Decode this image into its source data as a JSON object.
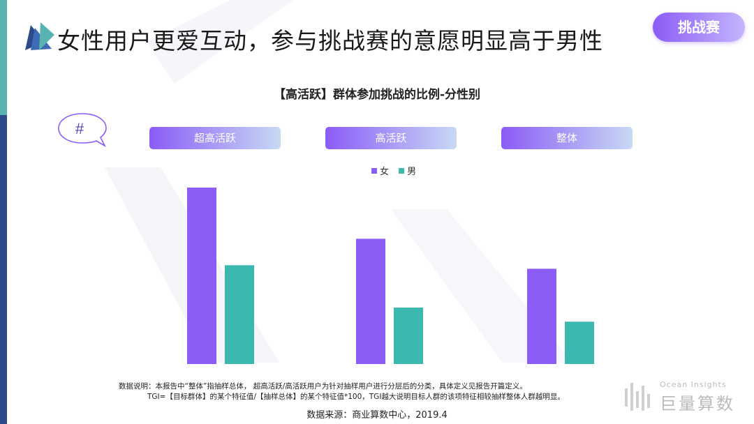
{
  "header": {
    "title": "女性用户更爱互动，参与挑战赛的意愿明显高于男性",
    "tag": "挑战赛"
  },
  "hash_symbol": "#",
  "colors": {
    "female": "#8b5cf6",
    "male": "#3db8b0",
    "accent": "#8b5cf6"
  },
  "chart_data": {
    "type": "bar",
    "title": "【高活跃】群体参加挑战的比例-分性别",
    "categories": [
      "超高活跃",
      "高活跃",
      "整体"
    ],
    "series": [
      {
        "name": "女",
        "values": [
          100,
          71,
          54
        ]
      },
      {
        "name": "男",
        "values": [
          56,
          32,
          24
        ]
      }
    ],
    "ylim": [
      0,
      100
    ],
    "grid": false,
    "y_axis_visible": false,
    "legend_position": "top-center"
  },
  "notes": {
    "line1": "数据说明：本报告中“整体”指抽样总体， 超高活跃/高活跃用户为针对抽样用户进行分层后的分类，具体定义见报告开篇定义。",
    "line2": "TGI=【目标群体】的某个特征值/【抽样总体】的某个特征值*100，TGI越大说明目标人群的该项特征相较抽样整体人群越明显。"
  },
  "source": "数据来源：商业算数中心，2019.4",
  "brand": {
    "en": "Ocean Insights",
    "cn": "巨量算数"
  }
}
